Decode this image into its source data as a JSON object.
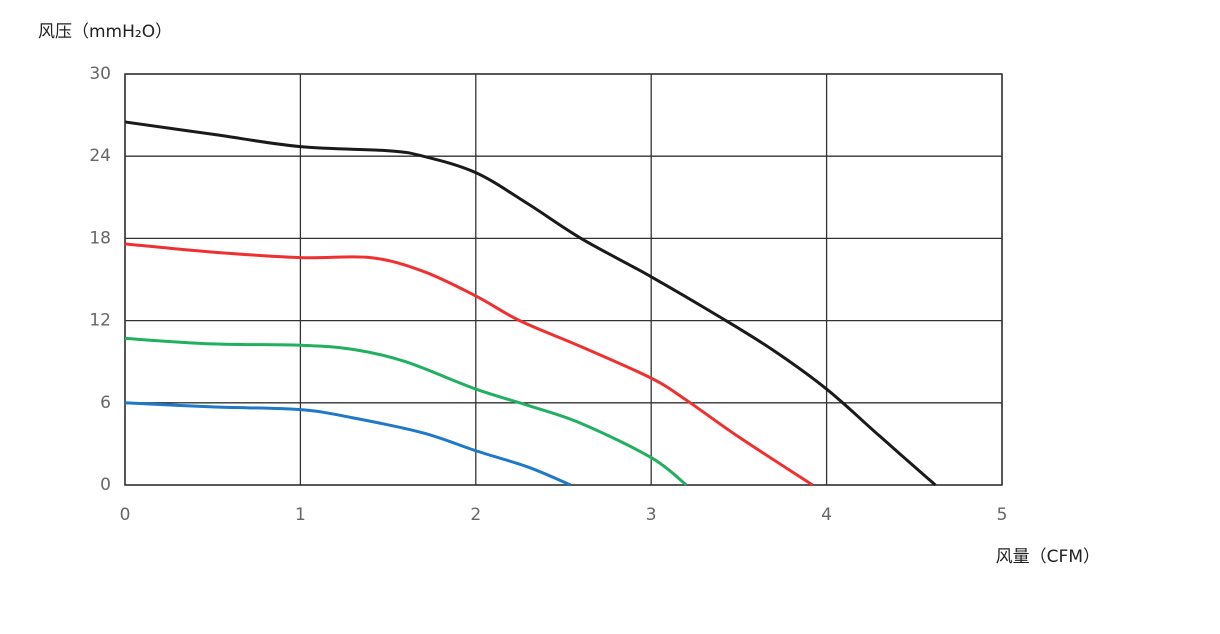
{
  "chart_data": {
    "type": "line",
    "y_label": "风压（mmH₂O）",
    "x_label": "风量（CFM）",
    "xlim": [
      0,
      5
    ],
    "xticks": [
      0,
      1,
      2,
      3,
      4,
      5
    ],
    "ylim": [
      0,
      30
    ],
    "yticks": [
      0,
      6,
      12,
      18,
      24,
      30
    ],
    "grid": true,
    "series": [
      {
        "color": "#1a1a1a",
        "x": [
          0,
          0.5,
          1,
          1.5,
          1.7,
          2,
          2.3,
          2.6,
          3,
          3.4,
          3.7,
          4,
          4.3,
          4.62
        ],
        "values": [
          26.5,
          25.6,
          24.7,
          24.4,
          24,
          22.8,
          20.5,
          18,
          15.2,
          12.2,
          9.8,
          7,
          3.6,
          0
        ]
      },
      {
        "color": "#f03030",
        "x": [
          0,
          0.5,
          1,
          1.4,
          1.7,
          2,
          2.25,
          2.6,
          3,
          3.2,
          3.5,
          3.92
        ],
        "values": [
          17.6,
          17,
          16.6,
          16.6,
          15.6,
          13.8,
          12,
          10.1,
          7.8,
          6.2,
          3.5,
          0
        ]
      },
      {
        "color": "#20b060",
        "x": [
          0,
          0.5,
          1,
          1.3,
          1.6,
          2,
          2.3,
          2.6,
          3,
          3.2
        ],
        "values": [
          10.7,
          10.3,
          10.2,
          9.9,
          9,
          7,
          5.8,
          4.5,
          2,
          0
        ]
      },
      {
        "color": "#1f78c8",
        "x": [
          0,
          0.5,
          1,
          1.3,
          1.7,
          2,
          2.3,
          2.54
        ],
        "values": [
          6,
          5.7,
          5.5,
          4.9,
          3.8,
          2.5,
          1.3,
          0
        ]
      }
    ]
  }
}
